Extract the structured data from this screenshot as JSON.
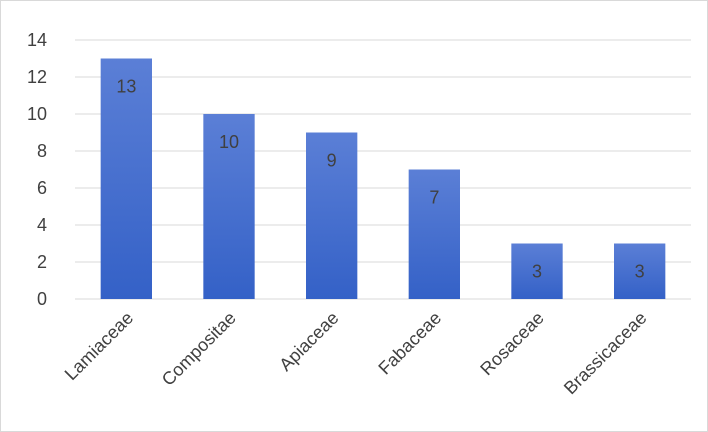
{
  "chart_data": {
    "type": "bar",
    "categories": [
      "Lamiaceae",
      "Compositae",
      "Apiaceae",
      "Fabaceae",
      "Rosaceae",
      "Brassicaceae"
    ],
    "values": [
      13,
      10,
      9,
      7,
      3,
      3
    ],
    "data_labels": [
      "13",
      "10",
      "9",
      "7",
      "3",
      "3"
    ],
    "title": "",
    "xlabel": "",
    "ylabel": "",
    "ylim": [
      0,
      14
    ],
    "yticks": [
      0,
      2,
      4,
      6,
      8,
      10,
      12,
      14
    ],
    "grid": true,
    "legend": "none",
    "colors": {
      "bar_top": "#5b7fd6",
      "bar_bottom": "#3461c7",
      "grid": "#d9d9d9",
      "text": "#404040"
    }
  }
}
